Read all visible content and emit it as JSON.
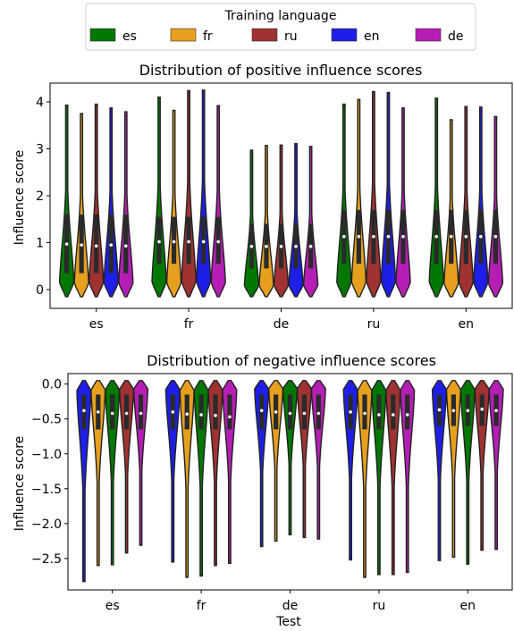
{
  "legend": {
    "title": "Training language",
    "entries": [
      {
        "label": "es",
        "color": "#007800"
      },
      {
        "label": "fr",
        "color": "#E6A01E"
      },
      {
        "label": "ru",
        "color": "#A03232"
      },
      {
        "label": "en",
        "color": "#1E1EE6"
      },
      {
        "label": "de",
        "color": "#B41EB4"
      }
    ]
  },
  "chart_data": [
    {
      "type": "violin",
      "title": "Distribution of positive influence scores",
      "xlabel": "",
      "ylabel": "Influence score",
      "ylim": [
        -0.4,
        4.4
      ],
      "yticks": [
        0,
        1,
        2,
        3,
        4
      ],
      "categories": [
        "es",
        "fr",
        "de",
        "ru",
        "en"
      ],
      "series": [
        {
          "name": "es",
          "medians": [
            0.97,
            1.02,
            0.92,
            1.13,
            1.13
          ],
          "q1": [
            0.35,
            0.55,
            0.45,
            0.55,
            0.55
          ],
          "q3": [
            1.6,
            1.55,
            1.4,
            1.7,
            1.7
          ],
          "max": [
            3.93,
            4.1,
            2.97,
            3.95,
            4.08
          ],
          "min": [
            -0.15,
            -0.15,
            -0.15,
            -0.15,
            -0.15
          ]
        },
        {
          "name": "fr",
          "medians": [
            0.95,
            1.02,
            0.92,
            1.13,
            1.13
          ],
          "q1": [
            0.35,
            0.55,
            0.45,
            0.55,
            0.55
          ],
          "q3": [
            1.6,
            1.55,
            1.4,
            1.7,
            1.7
          ],
          "max": [
            3.75,
            3.82,
            3.07,
            4.05,
            3.62
          ],
          "min": [
            -0.15,
            -0.15,
            -0.15,
            -0.15,
            -0.15
          ]
        },
        {
          "name": "ru",
          "medians": [
            0.93,
            1.02,
            0.92,
            1.13,
            1.13
          ],
          "q1": [
            0.35,
            0.55,
            0.45,
            0.55,
            0.55
          ],
          "q3": [
            1.6,
            1.55,
            1.4,
            1.7,
            1.7
          ],
          "max": [
            3.95,
            4.24,
            3.08,
            4.22,
            3.9
          ],
          "min": [
            -0.15,
            -0.15,
            -0.15,
            -0.15,
            -0.15
          ]
        },
        {
          "name": "en",
          "medians": [
            0.95,
            1.02,
            0.92,
            1.13,
            1.13
          ],
          "q1": [
            0.35,
            0.55,
            0.45,
            0.55,
            0.55
          ],
          "q3": [
            1.6,
            1.55,
            1.4,
            1.7,
            1.7
          ],
          "max": [
            3.87,
            4.25,
            3.11,
            4.2,
            3.89
          ],
          "min": [
            -0.15,
            -0.15,
            -0.15,
            -0.15,
            -0.15
          ]
        },
        {
          "name": "de",
          "medians": [
            0.93,
            1.02,
            0.92,
            1.13,
            1.13
          ],
          "q1": [
            0.35,
            0.55,
            0.45,
            0.55,
            0.55
          ],
          "q3": [
            1.6,
            1.55,
            1.4,
            1.7,
            1.7
          ],
          "max": [
            3.79,
            3.92,
            3.05,
            3.87,
            3.69
          ],
          "min": [
            -0.15,
            -0.15,
            -0.15,
            -0.15,
            -0.15
          ]
        }
      ],
      "grid": false,
      "legend_position": "top-center, outside"
    },
    {
      "type": "violin",
      "title": "Distribution of negative influence scores",
      "xlabel": "Test",
      "ylabel": "Influence score",
      "ylim": [
        -2.95,
        0.15
      ],
      "yticks": [
        0.0,
        -0.5,
        -1.0,
        -1.5,
        -2.0,
        -2.5
      ],
      "categories": [
        "es",
        "fr",
        "de",
        "ru",
        "en"
      ],
      "series": [
        {
          "name": "en",
          "medians": [
            -0.38,
            -0.4,
            -0.38,
            -0.4,
            -0.37
          ],
          "q1": [
            -0.65,
            -0.65,
            -0.65,
            -0.65,
            -0.6
          ],
          "q3": [
            -0.15,
            -0.15,
            -0.15,
            -0.15,
            -0.15
          ],
          "min": [
            -2.83,
            -2.55,
            -2.33,
            -2.52,
            -2.53
          ],
          "max": [
            0.05,
            0.05,
            0.05,
            0.05,
            0.05
          ]
        },
        {
          "name": "fr",
          "medians": [
            -0.4,
            -0.43,
            -0.4,
            -0.42,
            -0.38
          ],
          "q1": [
            -0.65,
            -0.65,
            -0.65,
            -0.65,
            -0.6
          ],
          "q3": [
            -0.15,
            -0.15,
            -0.15,
            -0.15,
            -0.15
          ],
          "min": [
            -2.6,
            -2.77,
            -2.25,
            -2.77,
            -2.48
          ]
        },
        {
          "name": "es",
          "medians": [
            -0.42,
            -0.44,
            -0.42,
            -0.44,
            -0.38
          ],
          "q1": [
            -0.65,
            -0.65,
            -0.65,
            -0.65,
            -0.6
          ],
          "q3": [
            -0.15,
            -0.15,
            -0.15,
            -0.15,
            -0.15
          ],
          "min": [
            -2.59,
            -2.75,
            -2.16,
            -2.73,
            -2.58
          ]
        },
        {
          "name": "ru",
          "medians": [
            -0.42,
            -0.45,
            -0.42,
            -0.44,
            -0.36
          ],
          "q1": [
            -0.65,
            -0.65,
            -0.65,
            -0.65,
            -0.6
          ],
          "q3": [
            -0.15,
            -0.15,
            -0.15,
            -0.15,
            -0.15
          ],
          "min": [
            -2.42,
            -2.6,
            -2.2,
            -2.73,
            -2.38
          ]
        },
        {
          "name": "de",
          "medians": [
            -0.42,
            -0.47,
            -0.42,
            -0.44,
            -0.38
          ],
          "q1": [
            -0.65,
            -0.65,
            -0.65,
            -0.65,
            -0.6
          ],
          "q3": [
            -0.15,
            -0.15,
            -0.15,
            -0.15,
            -0.15
          ],
          "min": [
            -2.31,
            -2.57,
            -2.22,
            -2.7,
            -2.37
          ]
        }
      ],
      "grid": false
    }
  ]
}
